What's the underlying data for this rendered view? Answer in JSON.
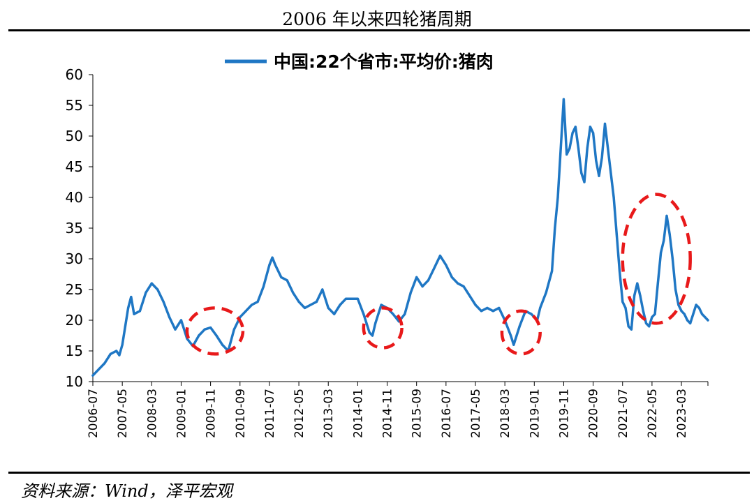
{
  "page": {
    "title": "2006 年以来四轮猪周期",
    "source": "资料来源：Wind，泽平宏观"
  },
  "chart_data": {
    "type": "line",
    "title": "2006 年以来四轮猪周期",
    "xlabel": "",
    "ylabel": "",
    "ylim": [
      10,
      60
    ],
    "yticks": [
      10,
      15,
      20,
      25,
      30,
      35,
      40,
      45,
      50,
      55,
      60
    ],
    "x_start": "2006-07",
    "x_end": "2023-12",
    "xtick_labels": [
      "2006-07",
      "2007-05",
      "2008-03",
      "2009-01",
      "2009-11",
      "2010-09",
      "2011-07",
      "2012-05",
      "2013-03",
      "2014-01",
      "2014-11",
      "2015-09",
      "2016-07",
      "2017-05",
      "2018-03",
      "2019-01",
      "2019-11",
      "2020-09",
      "2021-07",
      "2022-05",
      "2023-03"
    ],
    "legend": {
      "position": "top-center",
      "color": "#1F77C4"
    },
    "series": [
      {
        "name": "中国:22个省市:平均价:猪肉",
        "color": "#1F77C4",
        "points": [
          [
            "2006-07",
            11.0
          ],
          [
            "2006-09",
            12.0
          ],
          [
            "2006-11",
            13.0
          ],
          [
            "2007-01",
            14.5
          ],
          [
            "2007-03",
            15.0
          ],
          [
            "2007-04",
            14.3
          ],
          [
            "2007-05",
            16.0
          ],
          [
            "2007-06",
            19.0
          ],
          [
            "2007-07",
            22.0
          ],
          [
            "2007-08",
            23.8
          ],
          [
            "2007-09",
            21.0
          ],
          [
            "2007-11",
            21.5
          ],
          [
            "2008-01",
            24.5
          ],
          [
            "2008-03",
            26.0
          ],
          [
            "2008-05",
            25.0
          ],
          [
            "2008-07",
            23.0
          ],
          [
            "2008-09",
            20.5
          ],
          [
            "2008-11",
            18.5
          ],
          [
            "2009-01",
            20.0
          ],
          [
            "2009-03",
            17.0
          ],
          [
            "2009-05",
            15.8
          ],
          [
            "2009-07",
            17.5
          ],
          [
            "2009-09",
            18.5
          ],
          [
            "2009-11",
            18.8
          ],
          [
            "2010-01",
            17.5
          ],
          [
            "2010-03",
            16.0
          ],
          [
            "2010-05",
            15.0
          ],
          [
            "2010-07",
            18.5
          ],
          [
            "2010-09",
            20.5
          ],
          [
            "2010-11",
            21.5
          ],
          [
            "2011-01",
            22.5
          ],
          [
            "2011-03",
            23.0
          ],
          [
            "2011-05",
            25.5
          ],
          [
            "2011-07",
            29.0
          ],
          [
            "2011-08",
            30.2
          ],
          [
            "2011-09",
            29.0
          ],
          [
            "2011-11",
            27.0
          ],
          [
            "2012-01",
            26.5
          ],
          [
            "2012-03",
            24.5
          ],
          [
            "2012-05",
            23.0
          ],
          [
            "2012-07",
            22.0
          ],
          [
            "2012-09",
            22.5
          ],
          [
            "2012-11",
            23.0
          ],
          [
            "2013-01",
            25.0
          ],
          [
            "2013-03",
            22.0
          ],
          [
            "2013-05",
            21.0
          ],
          [
            "2013-07",
            22.5
          ],
          [
            "2013-09",
            23.5
          ],
          [
            "2013-11",
            23.5
          ],
          [
            "2014-01",
            23.5
          ],
          [
            "2014-03",
            21.0
          ],
          [
            "2014-05",
            18.0
          ],
          [
            "2014-06",
            17.5
          ],
          [
            "2014-07",
            19.5
          ],
          [
            "2014-09",
            22.5
          ],
          [
            "2014-11",
            22.0
          ],
          [
            "2015-01",
            21.0
          ],
          [
            "2015-03",
            19.8
          ],
          [
            "2015-05",
            21.0
          ],
          [
            "2015-07",
            24.5
          ],
          [
            "2015-09",
            27.0
          ],
          [
            "2015-11",
            25.5
          ],
          [
            "2016-01",
            26.5
          ],
          [
            "2016-03",
            28.5
          ],
          [
            "2016-05",
            30.5
          ],
          [
            "2016-07",
            29.0
          ],
          [
            "2016-09",
            27.0
          ],
          [
            "2016-11",
            26.0
          ],
          [
            "2017-01",
            25.5
          ],
          [
            "2017-03",
            24.0
          ],
          [
            "2017-05",
            22.5
          ],
          [
            "2017-07",
            21.5
          ],
          [
            "2017-09",
            22.0
          ],
          [
            "2017-11",
            21.5
          ],
          [
            "2018-01",
            22.0
          ],
          [
            "2018-03",
            20.0
          ],
          [
            "2018-05",
            17.5
          ],
          [
            "2018-06",
            16.0
          ],
          [
            "2018-08",
            19.0
          ],
          [
            "2018-10",
            21.5
          ],
          [
            "2018-12",
            21.0
          ],
          [
            "2019-02",
            20.0
          ],
          [
            "2019-03",
            22.0
          ],
          [
            "2019-05",
            24.5
          ],
          [
            "2019-07",
            28.0
          ],
          [
            "2019-08",
            35.0
          ],
          [
            "2019-09",
            40.0
          ],
          [
            "2019-10",
            48.0
          ],
          [
            "2019-11",
            56.0
          ],
          [
            "2019-12",
            47.0
          ],
          [
            "2020-01",
            48.0
          ],
          [
            "2020-02",
            50.5
          ],
          [
            "2020-03",
            51.5
          ],
          [
            "2020-04",
            48.0
          ],
          [
            "2020-05",
            44.0
          ],
          [
            "2020-06",
            42.5
          ],
          [
            "2020-07",
            48.0
          ],
          [
            "2020-08",
            51.5
          ],
          [
            "2020-09",
            50.5
          ],
          [
            "2020-10",
            46.0
          ],
          [
            "2020-11",
            43.5
          ],
          [
            "2020-12",
            46.5
          ],
          [
            "2021-01",
            52.0
          ],
          [
            "2021-02",
            48.0
          ],
          [
            "2021-03",
            44.0
          ],
          [
            "2021-04",
            40.0
          ],
          [
            "2021-05",
            34.0
          ],
          [
            "2021-06",
            28.0
          ],
          [
            "2021-07",
            23.0
          ],
          [
            "2021-08",
            22.0
          ],
          [
            "2021-09",
            19.0
          ],
          [
            "2021-10",
            18.5
          ],
          [
            "2021-11",
            24.0
          ],
          [
            "2021-12",
            26.0
          ],
          [
            "2022-01",
            24.0
          ],
          [
            "2022-02",
            21.5
          ],
          [
            "2022-03",
            19.5
          ],
          [
            "2022-04",
            19.0
          ],
          [
            "2022-05",
            20.5
          ],
          [
            "2022-06",
            21.0
          ],
          [
            "2022-07",
            26.0
          ],
          [
            "2022-08",
            31.0
          ],
          [
            "2022-09",
            33.0
          ],
          [
            "2022-10",
            37.0
          ],
          [
            "2022-11",
            34.0
          ],
          [
            "2022-12",
            30.0
          ],
          [
            "2023-01",
            25.0
          ],
          [
            "2023-02",
            22.5
          ],
          [
            "2023-03",
            21.5
          ],
          [
            "2023-04",
            21.0
          ],
          [
            "2023-05",
            20.0
          ],
          [
            "2023-06",
            19.5
          ],
          [
            "2023-07",
            21.0
          ],
          [
            "2023-08",
            22.5
          ],
          [
            "2023-09",
            22.0
          ],
          [
            "2023-10",
            21.0
          ],
          [
            "2023-11",
            20.5
          ],
          [
            "2023-12",
            20.0
          ]
        ]
      }
    ],
    "annotations": [
      {
        "type": "ellipse",
        "color": "#E8191A",
        "x_range": [
          "2009-03",
          "2010-10"
        ],
        "y_range": [
          14.5,
          22.0
        ]
      },
      {
        "type": "ellipse",
        "color": "#E8191A",
        "x_range": [
          "2014-03",
          "2015-04"
        ],
        "y_range": [
          15.5,
          22.0
        ]
      },
      {
        "type": "ellipse",
        "color": "#E8191A",
        "x_range": [
          "2018-02",
          "2019-03"
        ],
        "y_range": [
          14.5,
          21.5
        ]
      },
      {
        "type": "ellipse",
        "color": "#E8191A",
        "x_range": [
          "2021-07",
          "2023-06"
        ],
        "y_range": [
          19.5,
          40.5
        ]
      }
    ]
  }
}
